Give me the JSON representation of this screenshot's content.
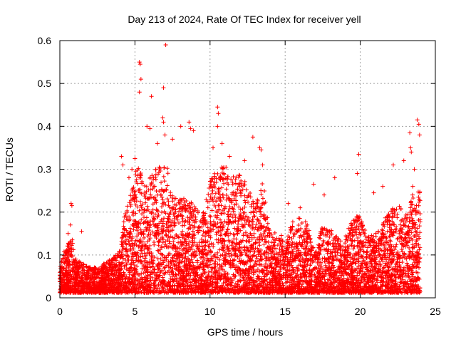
{
  "chart_data": {
    "type": "scatter",
    "title": "Day 213 of 2024, Rate Of TEC Index for receiver yell",
    "xlabel": "GPS time / hours",
    "ylabel": "ROTI / TECUs",
    "xlim": [
      0,
      25
    ],
    "ylim": [
      0,
      0.6
    ],
    "xticks": [
      0,
      5,
      10,
      15,
      20,
      25
    ],
    "xtick_labels": [
      "0",
      "5",
      "10",
      "15",
      "20",
      "25"
    ],
    "yticks": [
      0,
      0.1,
      0.2,
      0.3,
      0.4,
      0.5,
      0.6
    ],
    "ytick_labels": [
      "0",
      "0.1",
      "0.2",
      "0.3",
      "0.4",
      "0.5",
      "0.6"
    ],
    "grid": true,
    "marker": "plus",
    "color": "#ff0000",
    "series": [
      {
        "name": "ROTI",
        "envelope_x": [
          0,
          0.3,
          0.6,
          0.8,
          1.0,
          1.5,
          2.0,
          2.5,
          3.0,
          3.5,
          4.0,
          4.3,
          4.6,
          5.0,
          5.3,
          5.6,
          6.0,
          6.5,
          7.0,
          7.3,
          7.6,
          8.0,
          8.5,
          9.0,
          9.5,
          10.0,
          10.5,
          11.0,
          11.5,
          12.0,
          12.5,
          13.0,
          13.5,
          14.0,
          14.5,
          15.0,
          15.5,
          16.0,
          16.5,
          17.0,
          17.5,
          18.0,
          18.5,
          19.0,
          19.5,
          20.0,
          20.5,
          21.0,
          21.5,
          22.0,
          22.5,
          23.0,
          23.5,
          24.0
        ],
        "envelope_y": [
          0.06,
          0.1,
          0.12,
          0.13,
          0.08,
          0.07,
          0.06,
          0.06,
          0.07,
          0.08,
          0.1,
          0.18,
          0.22,
          0.28,
          0.3,
          0.25,
          0.27,
          0.3,
          0.3,
          0.28,
          0.22,
          0.22,
          0.22,
          0.2,
          0.18,
          0.27,
          0.3,
          0.3,
          0.27,
          0.28,
          0.25,
          0.2,
          0.27,
          0.14,
          0.14,
          0.13,
          0.17,
          0.18,
          0.16,
          0.1,
          0.16,
          0.15,
          0.13,
          0.13,
          0.18,
          0.18,
          0.13,
          0.14,
          0.17,
          0.19,
          0.21,
          0.18,
          0.23,
          0.24
        ],
        "outliers": [
          [
            0.75,
            0.22
          ],
          [
            0.8,
            0.215
          ],
          [
            0.7,
            0.17
          ],
          [
            1.45,
            0.155
          ],
          [
            0.55,
            0.15
          ],
          [
            4.1,
            0.33
          ],
          [
            4.2,
            0.31
          ],
          [
            4.6,
            0.28
          ],
          [
            4.8,
            0.3
          ],
          [
            5.0,
            0.325
          ],
          [
            5.3,
            0.55
          ],
          [
            5.35,
            0.545
          ],
          [
            5.4,
            0.51
          ],
          [
            5.3,
            0.48
          ],
          [
            6.1,
            0.47
          ],
          [
            5.8,
            0.4
          ],
          [
            6.0,
            0.395
          ],
          [
            7.05,
            0.59
          ],
          [
            6.9,
            0.49
          ],
          [
            6.85,
            0.42
          ],
          [
            6.9,
            0.41
          ],
          [
            7.0,
            0.38
          ],
          [
            6.5,
            0.36
          ],
          [
            7.5,
            0.37
          ],
          [
            8.05,
            0.4
          ],
          [
            8.6,
            0.41
          ],
          [
            8.7,
            0.395
          ],
          [
            8.9,
            0.39
          ],
          [
            10.5,
            0.445
          ],
          [
            10.55,
            0.43
          ],
          [
            10.5,
            0.4
          ],
          [
            10.2,
            0.35
          ],
          [
            10.8,
            0.36
          ],
          [
            11.3,
            0.33
          ],
          [
            12.85,
            0.375
          ],
          [
            13.3,
            0.35
          ],
          [
            13.4,
            0.345
          ],
          [
            12.3,
            0.32
          ],
          [
            13.5,
            0.31
          ],
          [
            15.2,
            0.22
          ],
          [
            16.0,
            0.21
          ],
          [
            16.9,
            0.265
          ],
          [
            17.6,
            0.24
          ],
          [
            18.3,
            0.28
          ],
          [
            19.8,
            0.29
          ],
          [
            19.9,
            0.335
          ],
          [
            20.9,
            0.245
          ],
          [
            21.5,
            0.26
          ],
          [
            22.2,
            0.31
          ],
          [
            22.9,
            0.32
          ],
          [
            23.3,
            0.385
          ],
          [
            23.35,
            0.35
          ],
          [
            23.4,
            0.34
          ],
          [
            23.8,
            0.415
          ],
          [
            23.9,
            0.405
          ],
          [
            23.95,
            0.38
          ],
          [
            23.6,
            0.3
          ],
          [
            23.5,
            0.26
          ]
        ]
      }
    ]
  }
}
